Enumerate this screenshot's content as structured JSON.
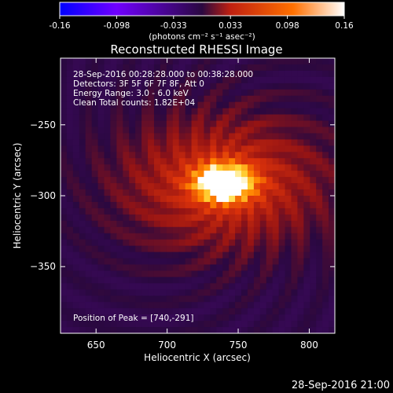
{
  "chart_data": {
    "type": "heatmap",
    "title": "Reconstructed RHESSI Image",
    "colorbar": {
      "ticks": [
        "-0.16",
        "-0.098",
        "-0.033",
        "0.033",
        "0.098",
        "0.16"
      ],
      "range": [
        -0.16,
        0.16
      ],
      "units_line": "(photons cm⁻² s⁻¹ asec⁻²)",
      "colors": [
        "#0000ff",
        "#7000ff",
        "#2a0840",
        "#c02010",
        "#ff7000",
        "#ffffff"
      ]
    },
    "xlabel": "Heliocentric X (arcsec)",
    "ylabel": "Heliocentric Y (arcsec)",
    "xlim": [
      625,
      818
    ],
    "ylim": [
      -397,
      -203
    ],
    "xticks": [
      "650",
      "700",
      "750",
      "800"
    ],
    "yticks": [
      "-250",
      "-300",
      "-350"
    ],
    "xtick_values": [
      650,
      700,
      750,
      800
    ],
    "ytick_values": [
      -250,
      -300,
      -350
    ],
    "annotations": [
      "28-Sep-2016 00:28:28.000 to 00:38:28.000",
      "Detectors: 3F 5F 6F 7F 8F, Att 0",
      "Energy Range: 3.0 - 6.0 keV",
      "Clean    Total counts: 1.82E+04"
    ],
    "peak_label": "Position of Peak = [740,-291]",
    "peak": [
      740,
      -291
    ],
    "grid": false
  },
  "footer": {
    "timestamp": "28-Sep-2016 21:00"
  }
}
